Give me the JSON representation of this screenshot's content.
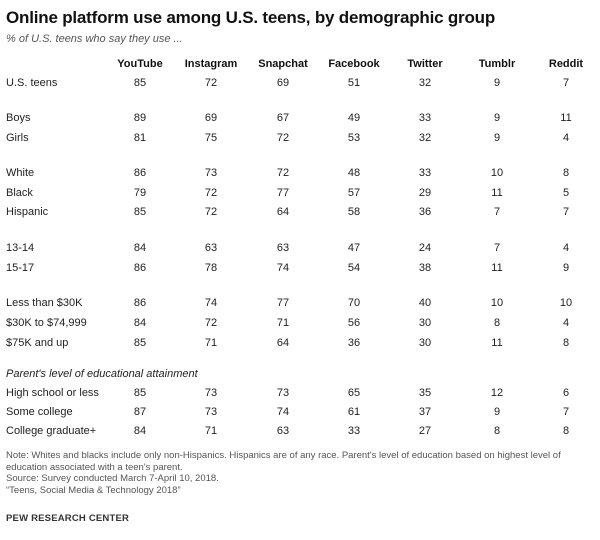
{
  "title": "Online platform use among U.S. teens, by demographic group",
  "subtitle": "% of U.S. teens who say they use ...",
  "chart_data": {
    "type": "table",
    "columns": [
      "YouTube",
      "Instagram",
      "Snapchat",
      "Facebook",
      "Twitter",
      "Tumblr",
      "Reddit"
    ],
    "rows": [
      {
        "label": "U.S. teens",
        "values": [
          85,
          72,
          69,
          51,
          32,
          9,
          7
        ]
      },
      {
        "label": "Boys",
        "values": [
          89,
          69,
          67,
          49,
          33,
          9,
          11
        ]
      },
      {
        "label": "Girls",
        "values": [
          81,
          75,
          72,
          53,
          32,
          9,
          4
        ]
      },
      {
        "label": "White",
        "values": [
          86,
          73,
          72,
          48,
          33,
          10,
          8
        ]
      },
      {
        "label": "Black",
        "values": [
          79,
          72,
          77,
          57,
          29,
          11,
          5
        ]
      },
      {
        "label": "Hispanic",
        "values": [
          85,
          72,
          64,
          58,
          36,
          7,
          7
        ]
      },
      {
        "label": "13-14",
        "values": [
          84,
          63,
          63,
          47,
          24,
          7,
          4
        ]
      },
      {
        "label": "15-17",
        "values": [
          86,
          78,
          74,
          54,
          38,
          11,
          9
        ]
      },
      {
        "label": "Less than $30K",
        "values": [
          86,
          74,
          77,
          70,
          40,
          10,
          10
        ]
      },
      {
        "label": "$30K to $74,999",
        "values": [
          84,
          72,
          71,
          56,
          30,
          8,
          4
        ]
      },
      {
        "label": "$75K and up",
        "values": [
          85,
          71,
          64,
          36,
          30,
          11,
          8
        ]
      },
      {
        "label": "High school or less",
        "values": [
          85,
          73,
          73,
          65,
          35,
          12,
          6
        ]
      },
      {
        "label": "Some college",
        "values": [
          87,
          73,
          74,
          61,
          37,
          9,
          7
        ]
      },
      {
        "label": "College graduate+",
        "values": [
          84,
          71,
          63,
          33,
          27,
          8,
          8
        ]
      }
    ],
    "section_label": "Parent's level of educational attainment"
  },
  "notes": [
    "Note: Whites and blacks include only non-Hispanics. Hispanics are of any race. Parent's level of education based on highest level of education associated with a teen's parent.",
    "Source: Survey conducted March 7-April 10, 2018.",
    "“Teens, Social Media & Technology 2018”"
  ],
  "logo": "PEW RESEARCH CENTER"
}
